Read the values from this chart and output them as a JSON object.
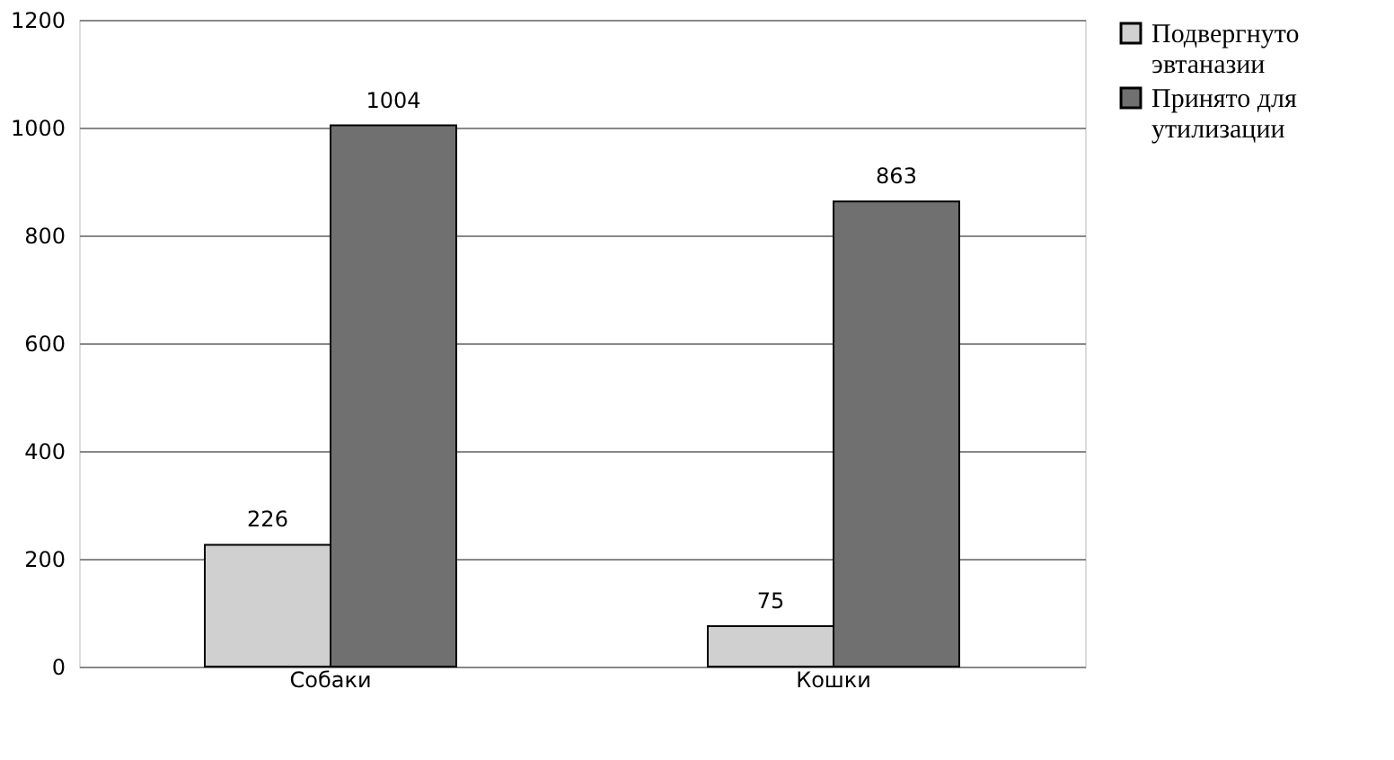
{
  "chart_data": {
    "type": "bar",
    "categories": [
      "Собаки",
      "Кошки"
    ],
    "series": [
      {
        "name": "Подвергнуто\nэвтаназии",
        "color": "#d0d0d0",
        "values": [
          226,
          75
        ]
      },
      {
        "name": "Принято для\nутилизации",
        "color": "#707070",
        "values": [
          1004,
          863
        ]
      }
    ],
    "ylim": [
      0,
      1200
    ],
    "yticks": [
      0,
      200,
      400,
      600,
      800,
      1000,
      1200
    ],
    "grid": "y",
    "legend": "right",
    "data_labels": true
  }
}
